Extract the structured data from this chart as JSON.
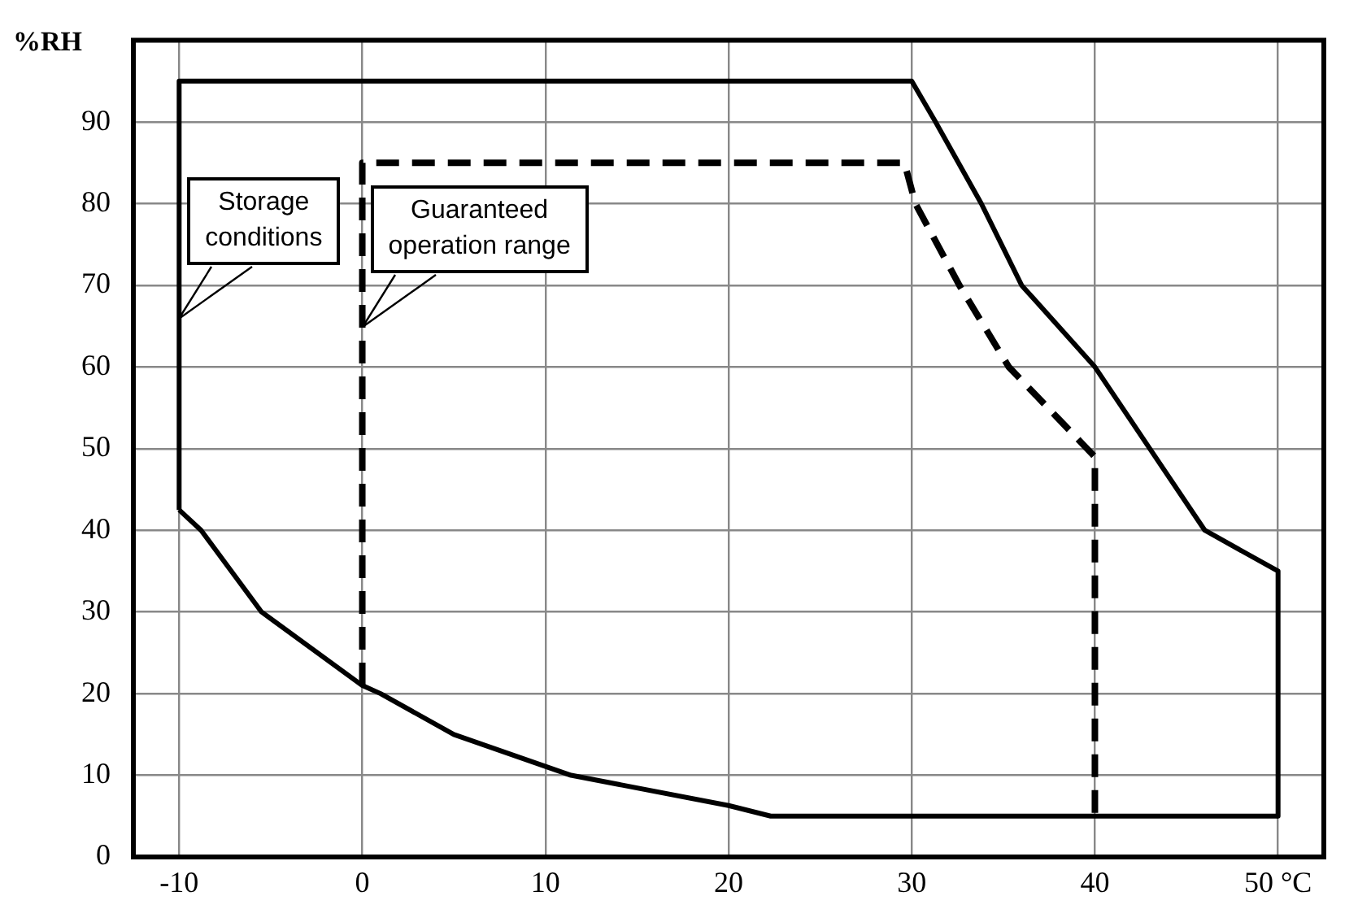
{
  "chart_data": {
    "type": "line",
    "ylabel": "%RH",
    "xlim": [
      -12.5,
      52.5
    ],
    "ylim": [
      0,
      100
    ],
    "xticks": [
      -10,
      0,
      10,
      20,
      30,
      40,
      {
        "value": 50,
        "label": "50 °C"
      }
    ],
    "yticks": [
      0,
      10,
      20,
      30,
      40,
      50,
      60,
      70,
      80,
      90
    ],
    "grid": true,
    "legend": false,
    "marker": "none",
    "series": [
      {
        "color": "#000000",
        "line_style": "solid",
        "x": [
          -10,
          -10,
          30,
          31.3,
          33.8,
          36,
          40,
          43,
          46,
          50,
          50
        ],
        "values": [
          42.5,
          95,
          95,
          90,
          80,
          70,
          60,
          50,
          40,
          35,
          5
        ]
      },
      {
        "color": "#000000",
        "line_style": "solid",
        "x": [
          -10,
          -8.8,
          -5.5,
          0,
          1,
          5,
          11.4,
          20,
          22.3,
          50
        ],
        "values": [
          42.5,
          40,
          30,
          21,
          20,
          15,
          10,
          6.3,
          5,
          5
        ]
      },
      {
        "color": "#000000",
        "line_style": "dashed",
        "x": [
          0,
          0,
          29.6,
          30.2,
          32.6,
          35.3,
          40,
          40
        ],
        "values": [
          21,
          85,
          85,
          80,
          70,
          60,
          49,
          5
        ]
      }
    ],
    "annotations": [
      {
        "text": "Storage\nconditions",
        "x": -10,
        "y": 66
      },
      {
        "text": "Guaranteed\noperation range",
        "x": 0,
        "y": 65
      }
    ]
  }
}
